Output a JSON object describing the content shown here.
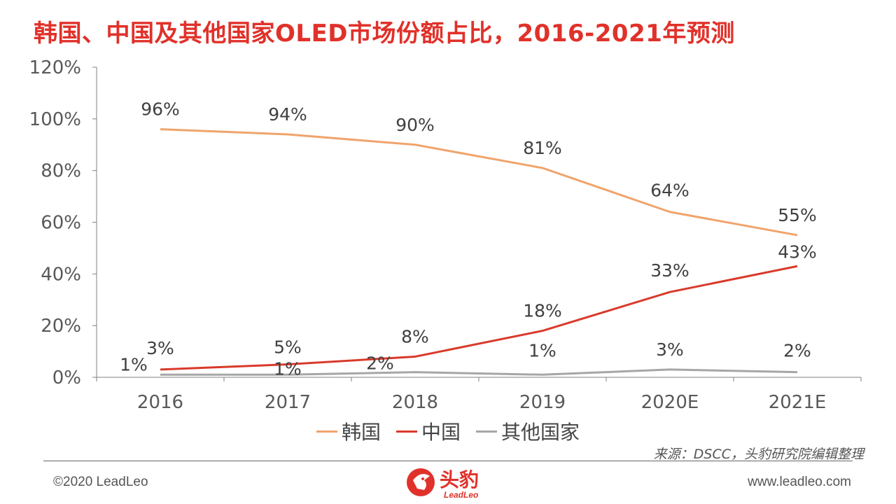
{
  "title": "韩国、中国及其他国家OLED市场份额占比，2016-2021年预测",
  "chart_data": {
    "type": "line",
    "categories": [
      "2016",
      "2017",
      "2018",
      "2019",
      "2020E",
      "2021E"
    ],
    "series": [
      {
        "name": "韩国",
        "color": "#f0a46c",
        "values": [
          96,
          94,
          90,
          81,
          64,
          55
        ],
        "labels": [
          "96%",
          "94%",
          "90%",
          "81%",
          "64%",
          "55%"
        ]
      },
      {
        "name": "中国",
        "color": "#d93a2b",
        "values": [
          3,
          5,
          8,
          18,
          33,
          43
        ],
        "labels": [
          "3%",
          "5%",
          "8%",
          "18%",
          "33%",
          "43%"
        ]
      },
      {
        "name": "其他国家",
        "color": "#a6a6a6",
        "values": [
          1,
          1,
          2,
          1,
          3,
          2
        ],
        "labels": [
          "1%",
          "1%",
          "2%",
          "1%",
          "3%",
          "2%"
        ]
      }
    ],
    "yticks": [
      "0%",
      "20%",
      "40%",
      "60%",
      "80%",
      "100%",
      "120%"
    ],
    "ylim": [
      0,
      120
    ],
    "grid": false,
    "legend": "bottom"
  },
  "source": "来源：DSCC，头豹研究院编辑整理",
  "footer": {
    "copyright": "©2020 LeadLeo",
    "website": "www.leadleo.com",
    "logo_cn": "头豹",
    "logo_en": "LeadLeo"
  }
}
